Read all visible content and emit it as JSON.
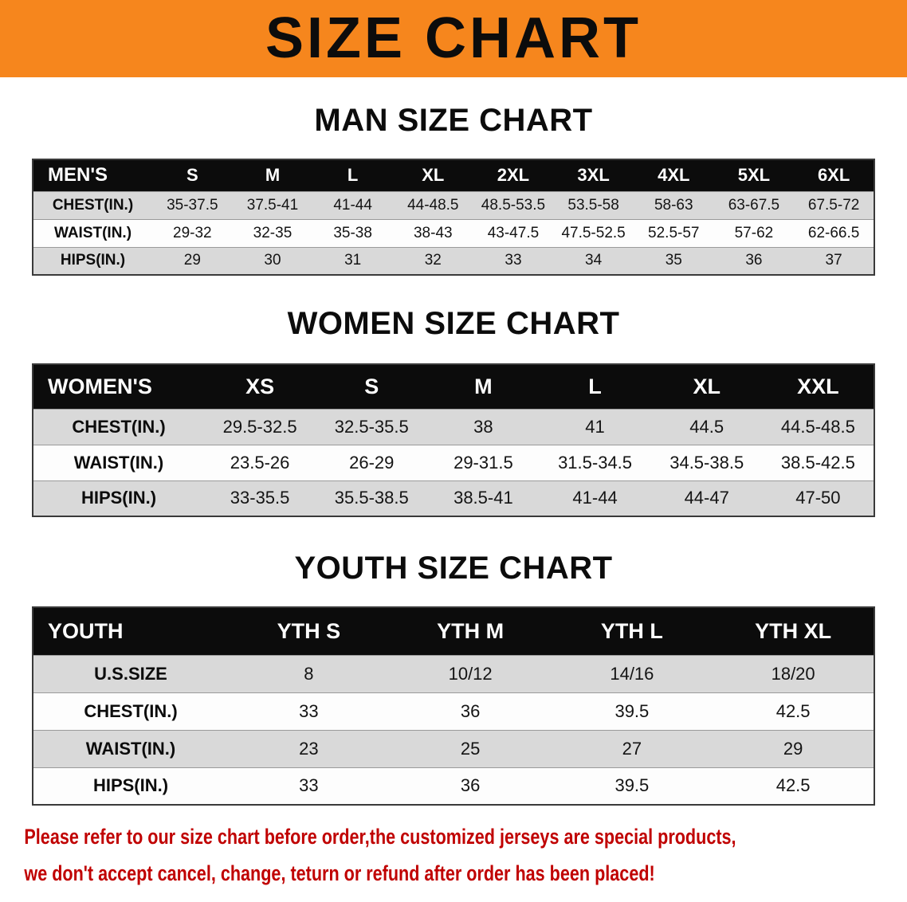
{
  "banner": {
    "title": "SIZE CHART"
  },
  "men": {
    "heading": "MAN SIZE CHART",
    "header": [
      "MEN'S",
      "S",
      "M",
      "L",
      "XL",
      "2XL",
      "3XL",
      "4XL",
      "5XL",
      "6XL"
    ],
    "rows": [
      [
        "CHEST(IN.)",
        "35-37.5",
        "37.5-41",
        "41-44",
        "44-48.5",
        "48.5-53.5",
        "53.5-58",
        "58-63",
        "63-67.5",
        "67.5-72"
      ],
      [
        "WAIST(IN.)",
        "29-32",
        "32-35",
        "35-38",
        "38-43",
        "43-47.5",
        "47.5-52.5",
        "52.5-57",
        "57-62",
        "62-66.5"
      ],
      [
        "HIPS(IN.)",
        "29",
        "30",
        "31",
        "32",
        "33",
        "34",
        "35",
        "36",
        "37"
      ]
    ]
  },
  "women": {
    "heading": "WOMEN SIZE CHART",
    "header": [
      "WOMEN'S",
      "XS",
      "S",
      "M",
      "L",
      "XL",
      "XXL"
    ],
    "rows": [
      [
        "CHEST(IN.)",
        "29.5-32.5",
        "32.5-35.5",
        "38",
        "41",
        "44.5",
        "44.5-48.5"
      ],
      [
        "WAIST(IN.)",
        "23.5-26",
        "26-29",
        "29-31.5",
        "31.5-34.5",
        "34.5-38.5",
        "38.5-42.5"
      ],
      [
        "HIPS(IN.)",
        "33-35.5",
        "35.5-38.5",
        "38.5-41",
        "41-44",
        "44-47",
        "47-50"
      ]
    ]
  },
  "youth": {
    "heading": "YOUTH SIZE CHART",
    "header": [
      "YOUTH",
      "YTH S",
      "YTH M",
      "YTH L",
      "YTH XL"
    ],
    "rows": [
      [
        "U.S.SIZE",
        "8",
        "10/12",
        "14/16",
        "18/20"
      ],
      [
        "CHEST(IN.)",
        "33",
        "36",
        "39.5",
        "42.5"
      ],
      [
        "WAIST(IN.)",
        "23",
        "25",
        "27",
        "29"
      ],
      [
        "HIPS(IN.)",
        "33",
        "36",
        "39.5",
        "42.5"
      ]
    ]
  },
  "note": {
    "line1": "Please refer to our size chart before order,the customized jerseys are special products,",
    "line2": "we don't accept cancel, change, teturn or refund after order has been placed!"
  },
  "colors": {
    "banner_bg": "#F6861D",
    "table_header_bg": "#0C0C0C",
    "row_stripe_bg": "#D9D9D9",
    "note_text": "#C00000"
  }
}
